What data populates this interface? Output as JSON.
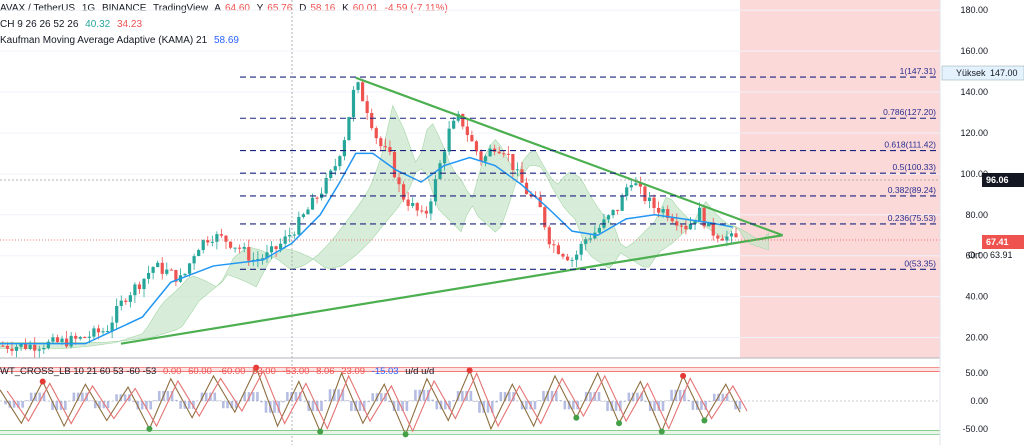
{
  "colors": {
    "bull": "#26a69a",
    "bear": "#ef5350",
    "kama": "#2196f3",
    "trendline": "#4caf50",
    "fib": "#1a237e",
    "cloud_bull": "#c8e6c9",
    "cloud_bear": "#f8c8c8",
    "future_zone": "#fcd9d9",
    "wt_line1": "#8d6e3f",
    "wt_line2": "#e57373"
  },
  "header": {
    "symbol": "AVAX / TetherUS",
    "interval": "1G",
    "exchange": "BINANCE",
    "platform": "TradingView",
    "o_label": "A",
    "open": "64.60",
    "h_label": "Y",
    "high": "65.76",
    "d_label": "D",
    "low": "58.16",
    "k_label": "K",
    "close": "60.01",
    "change": "-4.59 (-7.11%)"
  },
  "ichimoku_legend": {
    "name": "CH 9 26 26 52 26",
    "v1": "40.32",
    "v2": "34.23"
  },
  "kama_legend": {
    "name": "Kaufman Moving Average Adaptive (KAMA) 21",
    "value": "58.69"
  },
  "wt_legend": {
    "name": "WT_CROSS_LB 10 21 60 53 -60 -53",
    "params": [
      "0.00",
      "60.00",
      "-60.00",
      "53.00",
      "-53.00",
      "8.06",
      "23.09",
      "-15.03"
    ],
    "suffix": "u/d u/d"
  },
  "price_axis": {
    "ticks": [
      "180.00",
      "160.00",
      "140.00",
      "120.00",
      "100.00",
      "80.00",
      "60.00",
      "40.00",
      "20.00"
    ],
    "tags": {
      "current": "96.06",
      "last": "67.41",
      "avg_label": "Ort",
      "avg": "63.91",
      "high_label": "Yüksek",
      "high": "147.00"
    }
  },
  "osc_axis": {
    "ticks": [
      "50.00",
      "0.00",
      "-50.00"
    ]
  },
  "fib_levels": [
    {
      "label": "1(147.31)",
      "price": 147.31
    },
    {
      "label": "0.786(127.20)",
      "price": 127.2
    },
    {
      "label": "0.618(111.42)",
      "price": 111.42
    },
    {
      "label": "0.5(100.33)",
      "price": 100.33
    },
    {
      "label": "0.382(89.24)",
      "price": 89.24
    },
    {
      "label": "0.236(75.53)",
      "price": 75.53
    },
    {
      "label": "0(53.35)",
      "price": 53.35
    }
  ],
  "chart_data": {
    "type": "candlestick",
    "y_range": [
      10,
      185
    ],
    "osc_range": [
      -70,
      70
    ],
    "price_path": [
      [
        0,
        16
      ],
      [
        20,
        16
      ],
      [
        35,
        17
      ],
      [
        55,
        19
      ],
      [
        75,
        24
      ],
      [
        88,
        40
      ],
      [
        100,
        48
      ],
      [
        108,
        55
      ],
      [
        118,
        52
      ],
      [
        128,
        48
      ],
      [
        138,
        64
      ],
      [
        148,
        70
      ],
      [
        158,
        68
      ],
      [
        168,
        64
      ],
      [
        178,
        58
      ],
      [
        188,
        60
      ],
      [
        198,
        66
      ],
      [
        208,
        74
      ],
      [
        218,
        84
      ],
      [
        228,
        94
      ],
      [
        235,
        103
      ],
      [
        242,
        118
      ],
      [
        250,
        145
      ],
      [
        258,
        132
      ],
      [
        266,
        115
      ],
      [
        274,
        108
      ],
      [
        282,
        90
      ],
      [
        290,
        84
      ],
      [
        298,
        78
      ],
      [
        306,
        96
      ],
      [
        315,
        120
      ],
      [
        323,
        128
      ],
      [
        331,
        116
      ],
      [
        339,
        106
      ],
      [
        347,
        114
      ],
      [
        355,
        112
      ],
      [
        363,
        100
      ],
      [
        371,
        90
      ],
      [
        379,
        84
      ],
      [
        387,
        66
      ],
      [
        395,
        62
      ],
      [
        403,
        58
      ],
      [
        411,
        68
      ],
      [
        419,
        72
      ],
      [
        427,
        78
      ],
      [
        435,
        84
      ],
      [
        443,
        98
      ],
      [
        451,
        90
      ],
      [
        459,
        84
      ],
      [
        467,
        82
      ],
      [
        475,
        78
      ],
      [
        483,
        74
      ],
      [
        491,
        82
      ],
      [
        499,
        72
      ],
      [
        507,
        70
      ],
      [
        515,
        68
      ]
    ],
    "kama_path": [
      [
        0,
        17
      ],
      [
        60,
        17
      ],
      [
        100,
        30
      ],
      [
        120,
        47
      ],
      [
        150,
        55
      ],
      [
        185,
        58
      ],
      [
        205,
        66
      ],
      [
        225,
        80
      ],
      [
        238,
        95
      ],
      [
        250,
        110
      ],
      [
        262,
        110
      ],
      [
        278,
        102
      ],
      [
        296,
        96
      ],
      [
        312,
        104
      ],
      [
        330,
        108
      ],
      [
        348,
        104
      ],
      [
        366,
        95
      ],
      [
        384,
        84
      ],
      [
        402,
        72
      ],
      [
        420,
        70
      ],
      [
        440,
        78
      ],
      [
        460,
        80
      ],
      [
        480,
        78
      ],
      [
        500,
        76
      ],
      [
        515,
        74
      ]
    ],
    "trendlines": [
      {
        "from": [
          85,
          17
        ],
        "to": [
          550,
          70
        ]
      },
      {
        "from": [
          250,
          147
        ],
        "to": [
          550,
          70
        ]
      }
    ],
    "osc_wave1": [
      [
        0,
        20
      ],
      [
        15,
        -40
      ],
      [
        30,
        35
      ],
      [
        45,
        -45
      ],
      [
        60,
        30
      ],
      [
        75,
        -35
      ],
      [
        90,
        25
      ],
      [
        105,
        -50
      ],
      [
        120,
        40
      ],
      [
        135,
        -30
      ],
      [
        150,
        45
      ],
      [
        165,
        -20
      ],
      [
        180,
        60
      ],
      [
        195,
        -45
      ],
      [
        210,
        35
      ],
      [
        225,
        -55
      ],
      [
        240,
        50
      ],
      [
        255,
        -40
      ],
      [
        270,
        30
      ],
      [
        285,
        -60
      ],
      [
        300,
        40
      ],
      [
        315,
        -35
      ],
      [
        330,
        55
      ],
      [
        345,
        -50
      ],
      [
        360,
        30
      ],
      [
        375,
        -45
      ],
      [
        390,
        45
      ],
      [
        405,
        -30
      ],
      [
        420,
        50
      ],
      [
        435,
        -40
      ],
      [
        450,
        35
      ],
      [
        465,
        -55
      ],
      [
        480,
        45
      ],
      [
        495,
        -35
      ],
      [
        510,
        30
      ],
      [
        520,
        -20
      ]
    ],
    "osc_markers": [
      [
        30,
        35
      ],
      [
        105,
        -50
      ],
      [
        180,
        60
      ],
      [
        225,
        -55
      ],
      [
        285,
        -60
      ],
      [
        330,
        55
      ],
      [
        405,
        -30
      ],
      [
        435,
        -40
      ],
      [
        465,
        -55
      ],
      [
        480,
        45
      ],
      [
        495,
        -35
      ]
    ]
  }
}
